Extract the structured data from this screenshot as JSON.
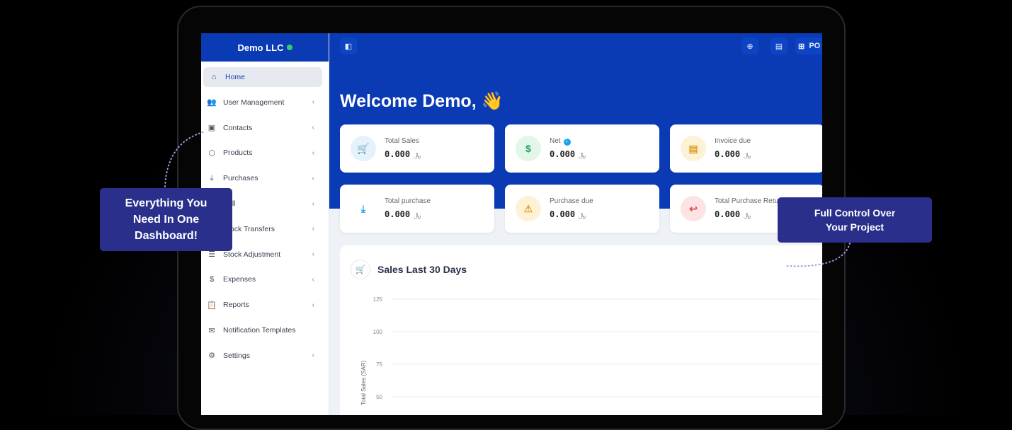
{
  "brand": {
    "name": "Demo LLC",
    "status_color": "#2fd06a"
  },
  "header": {
    "pos_label": "PO"
  },
  "sidebar": {
    "items": [
      {
        "label": "Home",
        "icon": "home-icon",
        "glyph": "⌂",
        "chevron": false
      },
      {
        "label": "User Management",
        "icon": "users-icon",
        "glyph": "👥",
        "chevron": true
      },
      {
        "label": "Contacts",
        "icon": "contact-icon",
        "glyph": "▣",
        "chevron": true
      },
      {
        "label": "Products",
        "icon": "box-icon",
        "glyph": "⬡",
        "chevron": true
      },
      {
        "label": "Purchases",
        "icon": "download-icon",
        "glyph": "⤓",
        "chevron": true
      },
      {
        "label": "Sell",
        "icon": "sell-icon",
        "glyph": "▤",
        "chevron": true
      },
      {
        "label": "Stock Transfers",
        "icon": "transfer-icon",
        "glyph": "⇄",
        "chevron": true
      },
      {
        "label": "Stock Adjustment",
        "icon": "database-icon",
        "glyph": "☰",
        "chevron": true
      },
      {
        "label": "Expenses",
        "icon": "expense-icon",
        "glyph": "$",
        "chevron": true
      },
      {
        "label": "Reports",
        "icon": "report-icon",
        "glyph": "📋",
        "chevron": true
      },
      {
        "label": "Notification Templates",
        "icon": "mail-icon",
        "glyph": "✉",
        "chevron": false
      },
      {
        "label": "Settings",
        "icon": "gear-icon",
        "glyph": "⚙",
        "chevron": true
      }
    ]
  },
  "welcome": {
    "text": "Welcome Demo,",
    "emoji": "👋"
  },
  "cards": [
    {
      "label": "Total Sales",
      "value": "0.000",
      "currency": "﷼",
      "icon": "cart-icon",
      "glyph": "🛒",
      "bg": "#e3f2fc",
      "fg": "#1ba3e8"
    },
    {
      "label": "Net",
      "value": "0.000",
      "currency": "﷼",
      "icon": "dollar-icon",
      "glyph": "$",
      "bg": "#e2f6ea",
      "fg": "#1aa35a",
      "info": "i"
    },
    {
      "label": "Invoice due",
      "value": "0.000",
      "currency": "﷼",
      "icon": "file-icon",
      "glyph": "▤",
      "bg": "#fdf1d6",
      "fg": "#e2a12a"
    },
    {
      "label": "Total purchase",
      "value": "0.000",
      "currency": "﷼",
      "icon": "download-icon",
      "glyph": "⤓",
      "bg": "#ffffff",
      "fg": "#1ba3e8"
    },
    {
      "label": "Purchase due",
      "value": "0.000",
      "currency": "﷼",
      "icon": "warning-icon",
      "glyph": "⚠",
      "bg": "#fdf1d6",
      "fg": "#e2a12a"
    },
    {
      "label": "Total Purchase Return",
      "value": "0.000",
      "currency": "﷼",
      "icon": "return-icon",
      "glyph": "↩",
      "bg": "#fde3e3",
      "fg": "#e04848"
    }
  ],
  "chart_data": {
    "type": "line",
    "title": "Sales Last 30 Days",
    "ylabel": "Total Sales (SAR)",
    "yticks": [
      125,
      100,
      75,
      50
    ],
    "ylim": [
      50,
      125
    ],
    "grid": true,
    "series": []
  },
  "callouts": {
    "left": "Everything You Need In One Dashboard!",
    "right": "Full Control Over Your Project"
  }
}
